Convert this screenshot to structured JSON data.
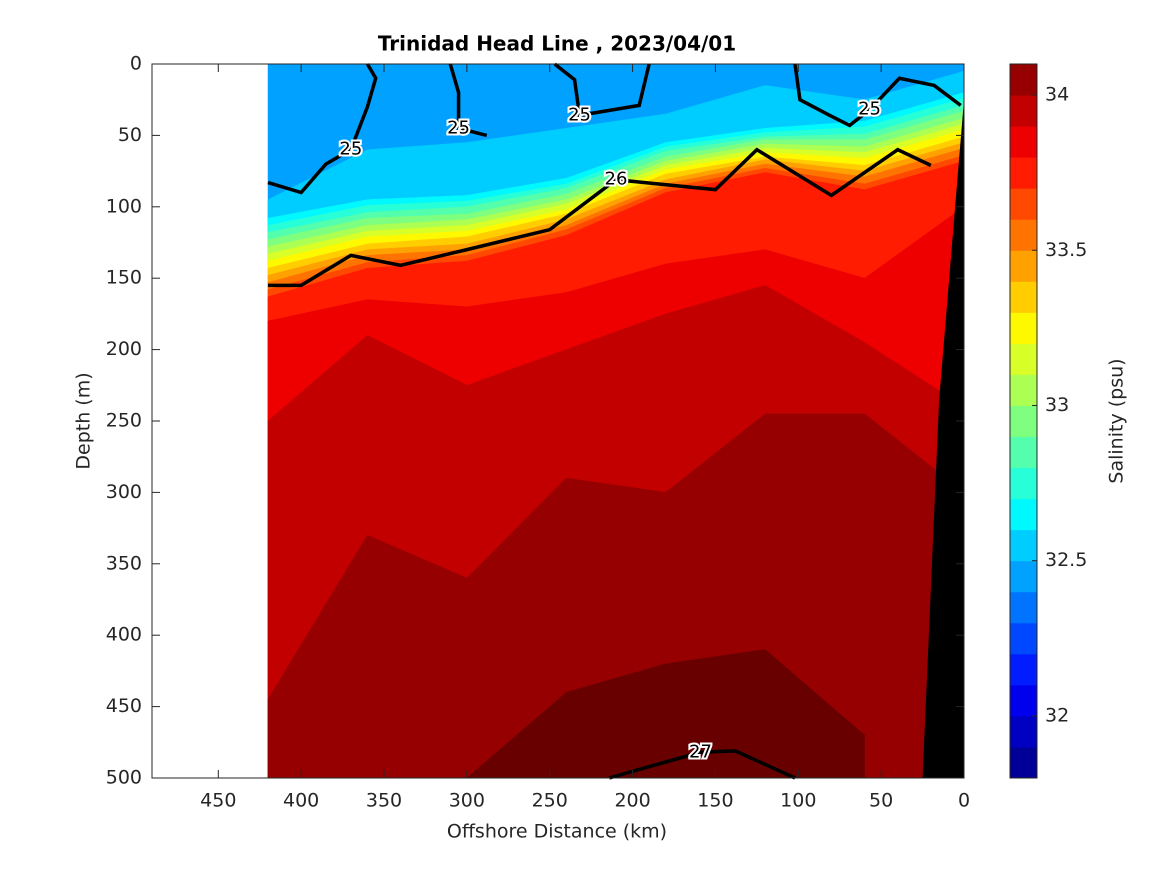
{
  "chart_data": {
    "type": "contour",
    "title": "Trinidad Head Line , 2023/04/01",
    "x_label": "Offshore Distance (km)",
    "y_label": "Depth (m)",
    "colorbar_label": "Salinity (psu)",
    "xlim": [
      490,
      0
    ],
    "xticks": [
      450,
      400,
      350,
      300,
      250,
      200,
      150,
      100,
      50,
      0
    ],
    "ylim": [
      0,
      500
    ],
    "yticks": [
      0,
      50,
      100,
      150,
      200,
      250,
      300,
      350,
      400,
      450,
      500
    ],
    "clim": [
      31.8,
      34.1
    ],
    "cticks": [
      32,
      32.5,
      33,
      33.5,
      34
    ],
    "contour_step": 0.1,
    "colormap": "jet",
    "x": [
      420,
      360,
      300,
      240,
      180,
      120,
      60,
      0
    ],
    "isolines": [
      {
        "level": 32.4,
        "depth": [
          0,
          0,
          0,
          0,
          0,
          0,
          0,
          0
        ]
      },
      {
        "level": 32.5,
        "depth": [
          95,
          60,
          55,
          45,
          35,
          15,
          25,
          5
        ]
      },
      {
        "level": 32.6,
        "depth": [
          108,
          95,
          92,
          80,
          55,
          45,
          40,
          20
        ]
      },
      {
        "level": 32.7,
        "depth": [
          113,
          99,
          96,
          84,
          58,
          48,
          44,
          24
        ]
      },
      {
        "level": 32.8,
        "depth": [
          118,
          104,
          100,
          87,
          61,
          51,
          49,
          29
        ]
      },
      {
        "level": 32.9,
        "depth": [
          123,
          108,
          105,
          91,
          65,
          53,
          53,
          33
        ]
      },
      {
        "level": 33.0,
        "depth": [
          128,
          113,
          109,
          95,
          68,
          56,
          58,
          38
        ]
      },
      {
        "level": 33.1,
        "depth": [
          133,
          117,
          113,
          98,
          71,
          59,
          62,
          42
        ]
      },
      {
        "level": 33.2,
        "depth": [
          138,
          121,
          117,
          102,
          74,
          62,
          66,
          46
        ]
      },
      {
        "level": 33.3,
        "depth": [
          143,
          126,
          121,
          105,
          77,
          65,
          71,
          51
        ]
      },
      {
        "level": 33.4,
        "depth": [
          148,
          130,
          126,
          109,
          81,
          67,
          75,
          55
        ]
      },
      {
        "level": 33.5,
        "depth": [
          153,
          134,
          130,
          113,
          84,
          70,
          79,
          59
        ]
      },
      {
        "level": 33.6,
        "depth": [
          158,
          139,
          134,
          116,
          87,
          73,
          84,
          64
        ]
      },
      {
        "level": 33.7,
        "depth": [
          163,
          143,
          138,
          120,
          90,
          76,
          88,
          68
        ]
      },
      {
        "level": 33.8,
        "depth": [
          180,
          165,
          170,
          160,
          140,
          130,
          150,
          100
        ]
      },
      {
        "level": 33.9,
        "depth": [
          250,
          190,
          225,
          200,
          175,
          155,
          195,
          240
        ]
      },
      {
        "level": 34.0,
        "depth": [
          445,
          330,
          360,
          290,
          300,
          245,
          245,
          300
        ]
      },
      {
        "level": 34.1,
        "depth": [
          null,
          null,
          500,
          440,
          420,
          410,
          470,
          null
        ]
      }
    ],
    "contours": [
      {
        "level": 25,
        "x": [
          420,
          400,
          385,
          370,
          360,
          355,
          360,
          null,
          310,
          305,
          305,
          288,
          null,
          247,
          235,
          232,
          196,
          190,
          null,
          102,
          99,
          81,
          69,
          57,
          39,
          18,
          2
        ],
        "depth": [
          83,
          90,
          70,
          60,
          30,
          10,
          0,
          null,
          0,
          20,
          45,
          50,
          null,
          0,
          11,
          36,
          29,
          0,
          null,
          0,
          25,
          36,
          43,
          32,
          10,
          15,
          29
        ]
      },
      {
        "level": 26,
        "x": [
          420,
          400,
          370,
          340,
          300,
          250,
          210,
          150,
          125,
          80,
          40,
          20
        ],
        "depth": [
          155,
          155,
          134,
          141,
          130,
          116,
          81,
          88,
          60,
          92,
          60,
          71
        ]
      },
      {
        "level": 27,
        "x": [
          214,
          196,
          159,
          138,
          102
        ],
        "depth": [
          500,
          494,
          482,
          481,
          500
        ]
      }
    ],
    "seafloor": {
      "x": [
        0,
        15,
        25
      ],
      "depth": [
        25,
        235,
        500
      ]
    }
  }
}
